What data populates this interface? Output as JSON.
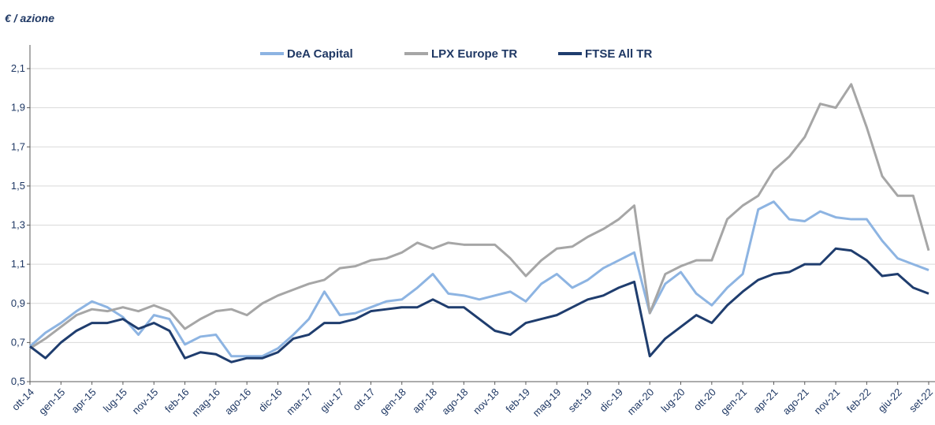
{
  "chart_data": {
    "type": "line",
    "title": "€ / azione",
    "categories": [
      "ott-14",
      null,
      "gen-15",
      null,
      "apr-15",
      null,
      "lug-15",
      null,
      "nov-15",
      null,
      "feb-16",
      null,
      "mag-16",
      null,
      "ago-16",
      null,
      "dic-16",
      null,
      "mar-17",
      null,
      "giu-17",
      null,
      "ott-17",
      null,
      "gen-18",
      null,
      "apr-18",
      null,
      "ago-18",
      null,
      "nov-18",
      null,
      "feb-19",
      null,
      "mag-19",
      null,
      "set-19",
      null,
      "dic-19",
      null,
      "mar-20",
      null,
      "lug-20",
      null,
      "ott-20",
      null,
      "gen-21",
      null,
      "apr-21",
      null,
      "ago-21",
      null,
      "nov-21",
      null,
      "feb-22",
      null,
      "giu-22",
      null,
      "set-22"
    ],
    "series": [
      {
        "name": "DeA Capital",
        "color": "#8db4e2",
        "values": [
          0.68,
          0.75,
          0.8,
          0.86,
          0.91,
          0.88,
          0.83,
          0.74,
          0.84,
          0.82,
          0.69,
          0.73,
          0.74,
          0.63,
          0.63,
          0.63,
          0.67,
          0.74,
          0.82,
          0.96,
          0.84,
          0.85,
          0.88,
          0.91,
          0.92,
          0.98,
          1.05,
          0.95,
          0.94,
          0.92,
          0.94,
          0.96,
          0.91,
          1.0,
          1.05,
          0.98,
          1.02,
          1.08,
          1.12,
          1.16,
          0.85,
          1.0,
          1.06,
          0.95,
          0.89,
          0.98,
          1.05,
          1.38,
          1.42,
          1.33,
          1.32,
          1.37,
          1.34,
          1.33,
          1.33,
          1.22,
          1.13,
          1.1,
          1.07
        ]
      },
      {
        "name": "LPX Europe TR",
        "color": "#a6a6a6",
        "values": [
          0.67,
          0.72,
          0.78,
          0.84,
          0.87,
          0.86,
          0.88,
          0.86,
          0.89,
          0.86,
          0.77,
          0.82,
          0.86,
          0.87,
          0.84,
          0.9,
          0.94,
          0.97,
          1.0,
          1.02,
          1.08,
          1.09,
          1.12,
          1.13,
          1.16,
          1.21,
          1.18,
          1.21,
          1.2,
          1.2,
          1.2,
          1.13,
          1.04,
          1.12,
          1.18,
          1.19,
          1.24,
          1.28,
          1.33,
          1.4,
          0.85,
          1.05,
          1.09,
          1.12,
          1.12,
          1.33,
          1.4,
          1.45,
          1.58,
          1.65,
          1.75,
          1.92,
          1.9,
          2.02,
          1.8,
          1.55,
          1.45,
          1.45,
          1.17
        ]
      },
      {
        "name": "FTSE All TR",
        "color": "#1f3d6e",
        "values": [
          0.68,
          0.62,
          0.7,
          0.76,
          0.8,
          0.8,
          0.82,
          0.77,
          0.8,
          0.76,
          0.62,
          0.65,
          0.64,
          0.6,
          0.62,
          0.62,
          0.65,
          0.72,
          0.74,
          0.8,
          0.8,
          0.82,
          0.86,
          0.87,
          0.88,
          0.88,
          0.92,
          0.88,
          0.88,
          0.82,
          0.76,
          0.74,
          0.8,
          0.82,
          0.84,
          0.88,
          0.92,
          0.94,
          0.98,
          1.01,
          0.63,
          0.72,
          0.78,
          0.84,
          0.8,
          0.89,
          0.96,
          1.02,
          1.05,
          1.06,
          1.1,
          1.1,
          1.18,
          1.17,
          1.12,
          1.04,
          1.05,
          0.98,
          0.95
        ]
      }
    ],
    "ylim": [
      0.5,
      2.1
    ],
    "yticks": [
      {
        "value": 0.5,
        "label": "0,5"
      },
      {
        "value": 0.7,
        "label": "0,7"
      },
      {
        "value": 0.9,
        "label": "0,9"
      },
      {
        "value": 1.1,
        "label": "1,1"
      },
      {
        "value": 1.3,
        "label": "1,3"
      },
      {
        "value": 1.5,
        "label": "1,5"
      },
      {
        "value": 1.7,
        "label": "1,7"
      },
      {
        "value": 1.9,
        "label": "1,9"
      },
      {
        "value": 2.1,
        "label": "2,1"
      }
    ],
    "grid": true
  }
}
